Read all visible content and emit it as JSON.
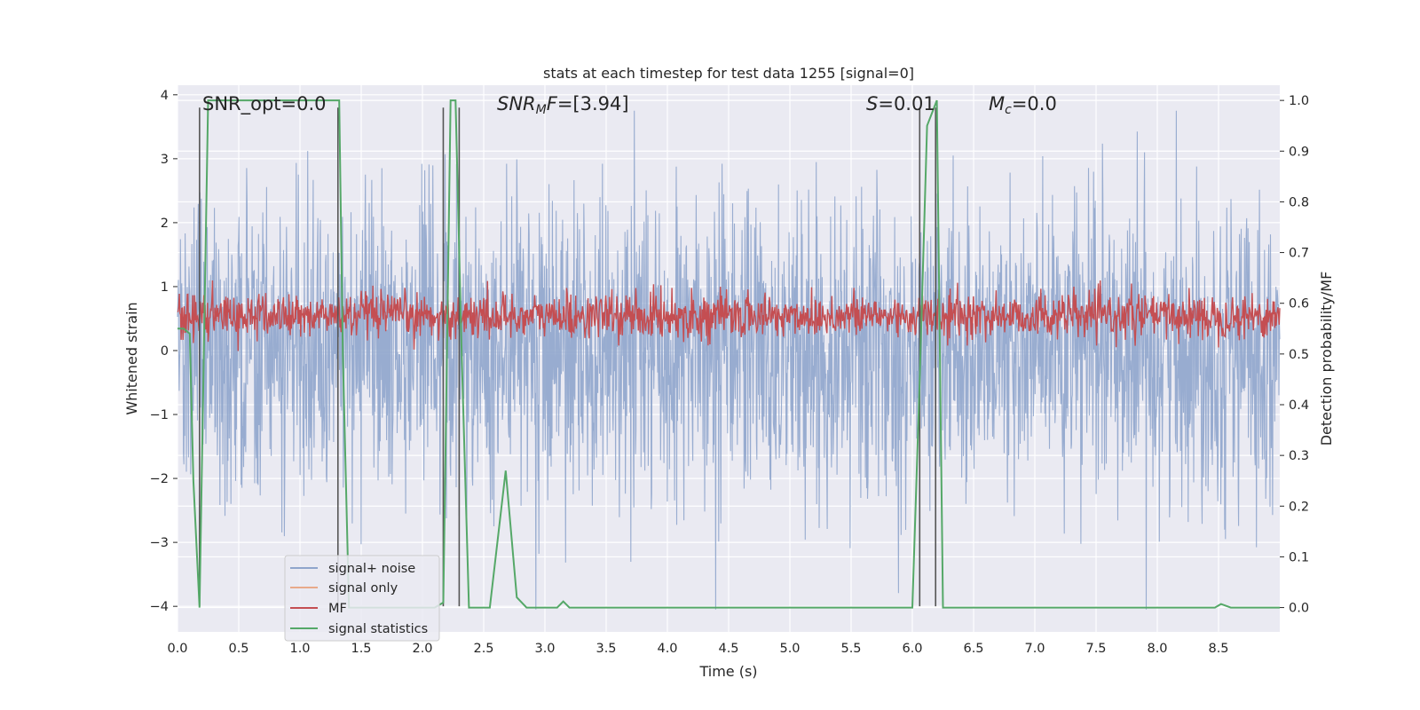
{
  "chart_data": {
    "type": "line",
    "title": "stats at each timestep for test data 1255 [signal=0]",
    "xlabel": "Time (s)",
    "ylabel": "Whitened strain",
    "y2label": "Detection probability/MF",
    "xlim": [
      0.0,
      9.0
    ],
    "ylim": [
      -4.4,
      4.15
    ],
    "y2lim": [
      -0.048,
      1.03
    ],
    "xticks": [
      "0.0",
      "0.5",
      "1.0",
      "1.5",
      "2.0",
      "2.5",
      "3.0",
      "3.5",
      "4.0",
      "4.5",
      "5.0",
      "5.5",
      "6.0",
      "6.5",
      "7.0",
      "7.5",
      "8.0",
      "8.5"
    ],
    "yticks": [
      "4",
      "3",
      "2",
      "1",
      "0",
      "−1",
      "−2",
      "−3",
      "−4"
    ],
    "y2ticks": [
      "1.0",
      "0.9",
      "0.8",
      "0.7",
      "0.6",
      "0.5",
      "0.4",
      "0.3",
      "0.2",
      "0.1",
      "0.0"
    ],
    "grid": true,
    "legend_position": "lower-left",
    "annotations": {
      "snr_opt": "SNR_opt=0.0",
      "snr_mf_main": "SNR",
      "snr_mf_sub": "M",
      "snr_mf_rest": "F=[3.94]",
      "s_main": "S",
      "s_rest": "=0.01",
      "mc_main": "M",
      "mc_sub": "c",
      "mc_rest": "=0.0"
    },
    "series": [
      {
        "name": "signal+ noise",
        "color": "#8fa5cc",
        "axis": "left",
        "description_values": "noise amplitude approx ±3.5"
      },
      {
        "name": "signal only",
        "color": "#e8a98a",
        "axis": "left",
        "values": []
      },
      {
        "name": "MF",
        "color": "#c44e52",
        "axis": "right",
        "band": [
          0.51,
          0.64
        ]
      },
      {
        "name": "signal statistics",
        "color": "#55a868",
        "axis": "right",
        "x": [
          0.0,
          0.05,
          0.1,
          0.13,
          0.18,
          0.25,
          0.3,
          0.35,
          0.4,
          0.6,
          0.8,
          1.0,
          1.2,
          1.3,
          1.32,
          1.35,
          1.4,
          1.5,
          1.7,
          1.9,
          2.1,
          2.17,
          2.2,
          2.23,
          2.27,
          2.32,
          2.38,
          2.45,
          2.55,
          2.68,
          2.77,
          2.85,
          3.0,
          3.1,
          3.15,
          3.2,
          3.4,
          3.6,
          4.0,
          5.0,
          6.0,
          6.06,
          6.12,
          6.2,
          6.25,
          6.35,
          7.0,
          8.0,
          8.4,
          8.47,
          8.52,
          8.6,
          9.0
        ],
        "y": [
          0.55,
          0.55,
          0.54,
          0.25,
          0.0,
          1.0,
          1.0,
          1.0,
          1.0,
          1.0,
          1.0,
          1.0,
          1.0,
          1.0,
          1.0,
          0.5,
          0.0,
          0.0,
          0.0,
          0.0,
          0.0,
          0.01,
          0.5,
          1.0,
          1.0,
          0.5,
          0.0,
          0.0,
          0.0,
          0.27,
          0.02,
          0.0,
          0.0,
          0.0,
          0.012,
          0.0,
          0.0,
          0.0,
          0.0,
          0.0,
          0.0,
          0.45,
          0.95,
          1.0,
          0.0,
          0.0,
          0.0,
          0.0,
          0.0,
          0.0,
          0.007,
          0.0,
          0.0
        ]
      }
    ],
    "vertical_markers_x": [
      0.18,
      1.31,
      2.17,
      2.3,
      6.06,
      6.19
    ]
  },
  "legend": {
    "entries": [
      {
        "label": "signal+ noise",
        "color": "#8fa5cc"
      },
      {
        "label": "signal only",
        "color": "#e8a98a"
      },
      {
        "label": "MF",
        "color": "#c44e52"
      },
      {
        "label": "signal statistics",
        "color": "#55a868"
      }
    ]
  }
}
